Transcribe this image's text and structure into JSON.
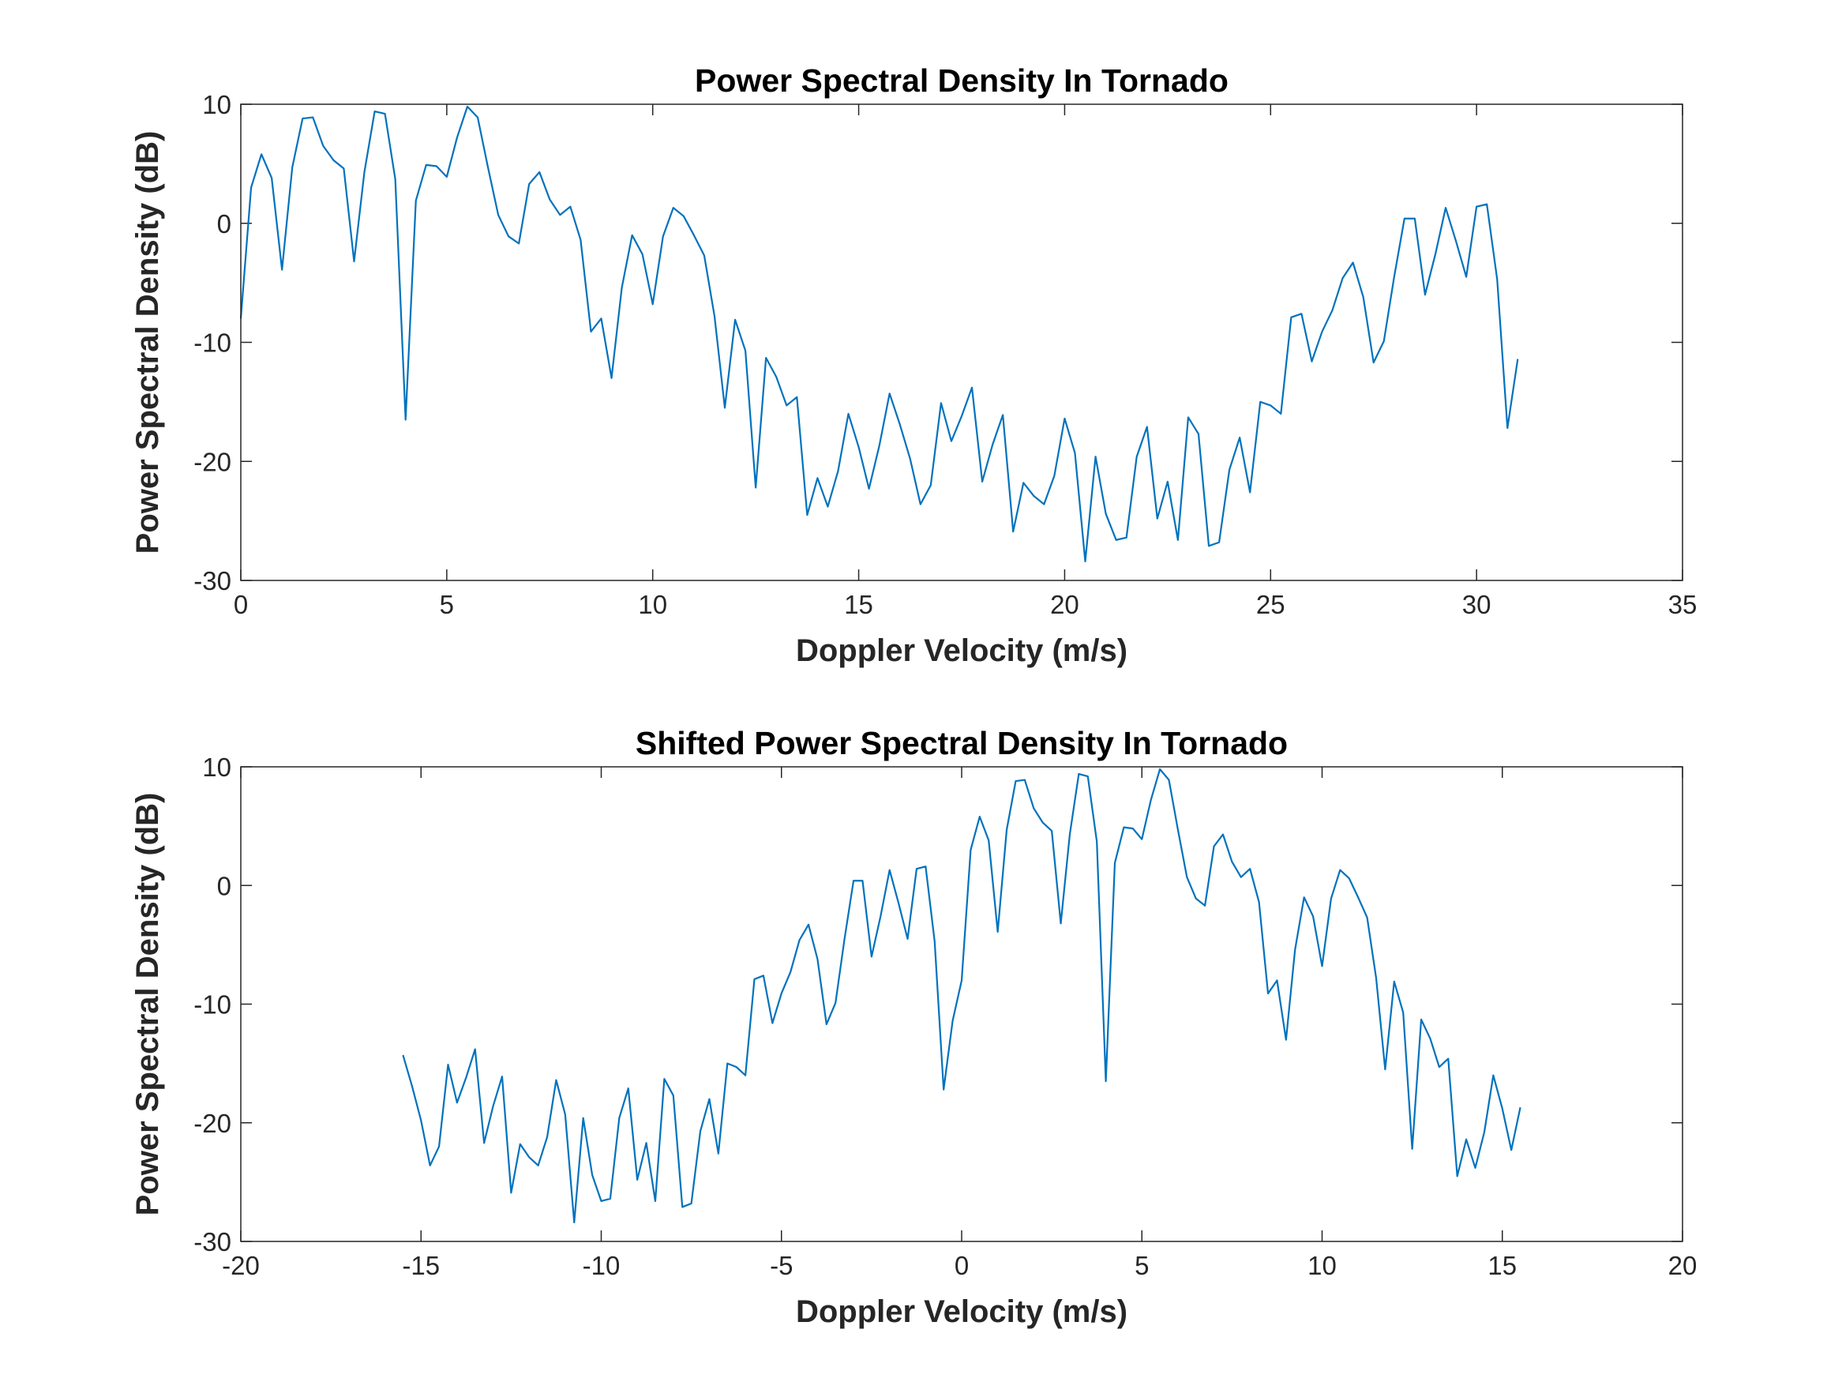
{
  "chart_data": [
    {
      "type": "line",
      "title": "Power Spectral Density In Tornado",
      "xlabel": "Doppler Velocity (m/s)",
      "ylabel": "Power Spectral Density (dB)",
      "xlim": [
        0,
        35
      ],
      "xticks": [
        0,
        5,
        10,
        15,
        20,
        25,
        30,
        35
      ],
      "ylim": [
        -30,
        10
      ],
      "yticks": [
        -30,
        -20,
        -10,
        0,
        10
      ],
      "x": [
        0,
        0.25,
        0.5,
        0.75,
        1,
        1.25,
        1.5,
        1.75,
        2,
        2.25,
        2.5,
        2.75,
        3,
        3.25,
        3.5,
        3.75,
        4,
        4.25,
        4.5,
        4.75,
        5,
        5.25,
        5.5,
        5.75,
        6,
        6.25,
        6.5,
        6.75,
        7,
        7.25,
        7.5,
        7.75,
        8,
        8.25,
        8.5,
        8.75,
        9,
        9.25,
        9.5,
        9.75,
        10,
        10.25,
        10.5,
        10.75,
        11,
        11.25,
        11.5,
        11.75,
        12,
        12.25,
        12.5,
        12.75,
        13,
        13.25,
        13.5,
        13.75,
        14,
        14.25,
        14.5,
        14.75,
        15,
        15.25,
        15.5,
        15.75,
        16,
        16.25,
        16.5,
        16.75,
        17,
        17.25,
        17.5,
        17.75,
        18,
        18.25,
        18.5,
        18.75,
        19,
        19.25,
        19.5,
        19.75,
        20,
        20.25,
        20.5,
        20.75,
        21,
        21.25,
        21.5,
        21.75,
        22,
        22.25,
        22.5,
        22.75,
        23,
        23.25,
        23.5,
        23.75,
        24,
        24.25,
        24.5,
        24.75,
        25,
        25.25,
        25.5,
        25.75,
        26,
        26.25,
        26.5,
        26.75,
        27,
        27.25,
        27.5,
        27.75,
        28,
        28.25,
        28.5,
        28.75,
        29,
        29.25,
        29.5,
        29.75,
        30,
        30.25,
        30.5,
        30.75,
        31
      ],
      "series": [
        {
          "color": "#0072bd",
          "values": [
            -8,
            3,
            5.8,
            3.8,
            -3.9,
            4.7,
            8.8,
            8.9,
            6.5,
            5.3,
            4.6,
            -3.2,
            4.3,
            9.4,
            9.2,
            3.7,
            -16.5,
            1.9,
            4.9,
            4.8,
            3.9,
            7.2,
            9.8,
            8.9,
            4.7,
            0.7,
            -1.1,
            -1.7,
            3.3,
            4.3,
            2.0,
            0.7,
            1.4,
            -1.4,
            -9.1,
            -8.0,
            -13.0,
            -5.4,
            -1.0,
            -2.6,
            -6.8,
            -1.1,
            1.3,
            0.6,
            -1.0,
            -2.7,
            -7.8,
            -15.5,
            -8.1,
            -10.7,
            -22.2,
            -11.3,
            -12.9,
            -15.3,
            -14.6,
            -24.5,
            -21.4,
            -23.8,
            -20.8,
            -16.0,
            -18.8,
            -22.3,
            -18.7,
            -14.3,
            -16.9,
            -19.8,
            -23.6,
            -22.0,
            -15.1,
            -18.3,
            -16.2,
            -13.8,
            -21.7,
            -18.6,
            -16.1,
            -25.9,
            -21.8,
            -22.9,
            -23.6,
            -21.2,
            -16.4,
            -19.3,
            -28.4,
            -19.6,
            -24.4,
            -26.6,
            -26.4,
            -19.6,
            -17.1,
            -24.8,
            -21.7,
            -26.6,
            -16.3,
            -17.7,
            -27.1,
            -26.8,
            -20.7,
            -18.0,
            -22.6,
            -15.0,
            -15.3,
            -16.0,
            -7.9,
            -7.6,
            -11.6,
            -9.1,
            -7.3,
            -4.6,
            -3.3,
            -6.2,
            -11.7,
            -9.9,
            -4.5,
            0.4,
            0.4,
            -6.0,
            -2.6,
            1.3,
            -1.5,
            -4.5,
            1.4,
            1.6,
            -4.7,
            -17.2,
            -11.4
          ]
        }
      ]
    },
    {
      "type": "line",
      "title": "Shifted Power Spectral Density In Tornado",
      "xlabel": "Doppler Velocity (m/s)",
      "ylabel": "Power Spectral Density (dB)",
      "xlim": [
        -20,
        20
      ],
      "xticks": [
        -20,
        -15,
        -10,
        -5,
        0,
        5,
        10,
        15,
        20
      ],
      "ylim": [
        -30,
        10
      ],
      "yticks": [
        -30,
        -20,
        -10,
        0,
        10
      ],
      "x": [
        -15.5,
        -15.25,
        -15,
        -14.75,
        -14.5,
        -14.25,
        -14,
        -13.75,
        -13.5,
        -13.25,
        -13,
        -12.75,
        -12.5,
        -12.25,
        -12,
        -11.75,
        -11.5,
        -11.25,
        -11,
        -10.75,
        -10.5,
        -10.25,
        -10,
        -9.75,
        -9.5,
        -9.25,
        -9,
        -8.75,
        -8.5,
        -8.25,
        -8,
        -7.75,
        -7.5,
        -7.25,
        -7,
        -6.75,
        -6.5,
        -6.25,
        -6,
        -5.75,
        -5.5,
        -5.25,
        -5,
        -4.75,
        -4.5,
        -4.25,
        -4,
        -3.75,
        -3.5,
        -3.25,
        -3,
        -2.75,
        -2.5,
        -2.25,
        -2,
        -1.75,
        -1.5,
        -1.25,
        -1,
        -0.75,
        -0.5,
        -0.25,
        0,
        0.25,
        0.5,
        0.75,
        1,
        1.25,
        1.5,
        1.75,
        2,
        2.25,
        2.5,
        2.75,
        3,
        3.25,
        3.5,
        3.75,
        4,
        4.25,
        4.5,
        4.75,
        5,
        5.25,
        5.5,
        5.75,
        6,
        6.25,
        6.5,
        6.75,
        7,
        7.25,
        7.5,
        7.75,
        8,
        8.25,
        8.5,
        8.75,
        9,
        9.25,
        9.5,
        9.75,
        10,
        10.25,
        10.5,
        10.75,
        11,
        11.25,
        11.5,
        11.75,
        12,
        12.25,
        12.5,
        12.75,
        13,
        13.25,
        13.5,
        13.75,
        14,
        14.25,
        14.5,
        14.75,
        15,
        15.25,
        15.5
      ],
      "series": [
        {
          "color": "#0072bd",
          "values": [
            -14.3,
            -16.9,
            -19.8,
            -23.6,
            -22.0,
            -15.1,
            -18.3,
            -16.2,
            -13.8,
            -21.7,
            -18.6,
            -16.1,
            -25.9,
            -21.8,
            -22.9,
            -23.6,
            -21.2,
            -16.4,
            -19.3,
            -28.4,
            -19.6,
            -24.4,
            -26.6,
            -26.4,
            -19.6,
            -17.1,
            -24.8,
            -21.7,
            -26.6,
            -16.3,
            -17.7,
            -27.1,
            -26.8,
            -20.7,
            -18.0,
            -22.6,
            -15.0,
            -15.3,
            -16.0,
            -7.9,
            -7.6,
            -11.6,
            -9.1,
            -7.3,
            -4.6,
            -3.3,
            -6.2,
            -11.7,
            -9.9,
            -4.5,
            0.4,
            0.4,
            -6.0,
            -2.6,
            1.3,
            -1.5,
            -4.5,
            1.4,
            1.6,
            -4.7,
            -17.2,
            -11.4,
            -8,
            3,
            5.8,
            3.8,
            -3.9,
            4.7,
            8.8,
            8.9,
            6.5,
            5.3,
            4.6,
            -3.2,
            4.3,
            9.4,
            9.2,
            3.7,
            -16.5,
            1.9,
            4.9,
            4.8,
            3.9,
            7.2,
            9.8,
            8.9,
            4.7,
            0.7,
            -1.1,
            -1.7,
            3.3,
            4.3,
            2.0,
            0.7,
            1.4,
            -1.4,
            -9.1,
            -8.0,
            -13.0,
            -5.4,
            -1.0,
            -2.6,
            -6.8,
            -1.1,
            1.3,
            0.6,
            -1.0,
            -2.7,
            -7.8,
            -15.5,
            -8.1,
            -10.7,
            -22.2,
            -11.3,
            -12.9,
            -15.3,
            -14.6,
            -24.5,
            -21.4,
            -23.8,
            -20.8,
            -16.0,
            -18.8,
            -22.3,
            -18.7
          ]
        }
      ]
    }
  ]
}
